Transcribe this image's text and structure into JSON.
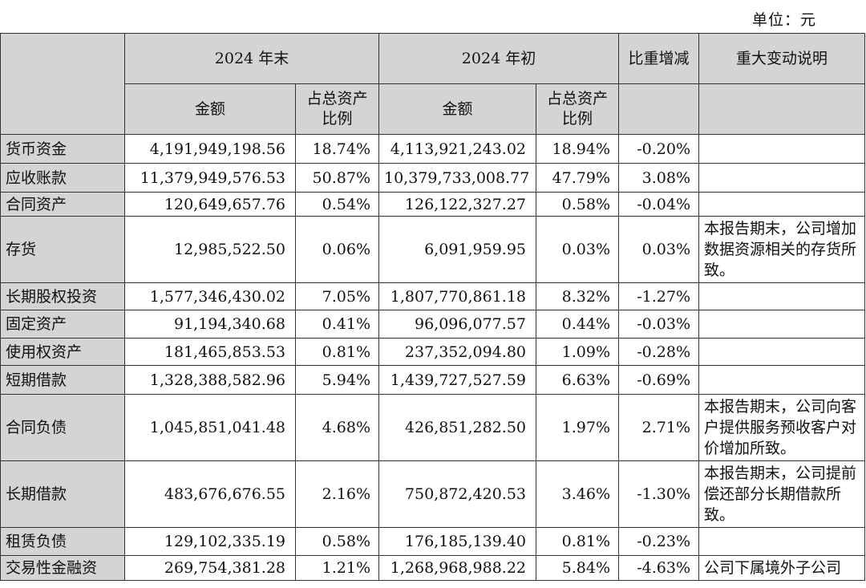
{
  "unit_label": "单位：元",
  "header": {
    "period_end": "2024 年末",
    "period_start": "2024 年初",
    "change": "比重增减",
    "explanation": "重大变动说明",
    "amount": "金额",
    "ratio": "占总资产比例"
  },
  "rows": [
    {
      "name": "货币资金",
      "end_amount": "4,191,949,198.56",
      "end_ratio": "18.74%",
      "start_amount": "4,113,921,243.02",
      "start_ratio": "18.94%",
      "change": "-0.20%",
      "note": ""
    },
    {
      "name": "应收账款",
      "end_amount": "11,379,949,576.53",
      "end_ratio": "50.87%",
      "start_amount": "10,379,733,008.77",
      "start_ratio": "47.79%",
      "change": "3.08%",
      "note": ""
    },
    {
      "name": "合同资产",
      "end_amount": "120,649,657.76",
      "end_ratio": "0.54%",
      "start_amount": "126,122,327.27",
      "start_ratio": "0.58%",
      "change": "-0.04%",
      "note": ""
    },
    {
      "name": "存货",
      "end_amount": "12,985,522.50",
      "end_ratio": "0.06%",
      "start_amount": "6,091,959.95",
      "start_ratio": "0.03%",
      "change": "0.03%",
      "note": "本报告期末，公司增加数据资源相关的存货所致。"
    },
    {
      "name": "长期股权投资",
      "end_amount": "1,577,346,430.02",
      "end_ratio": "7.05%",
      "start_amount": "1,807,770,861.18",
      "start_ratio": "8.32%",
      "change": "-1.27%",
      "note": ""
    },
    {
      "name": "固定资产",
      "end_amount": "91,194,340.68",
      "end_ratio": "0.41%",
      "start_amount": "96,096,077.57",
      "start_ratio": "0.44%",
      "change": "-0.03%",
      "note": ""
    },
    {
      "name": "使用权资产",
      "end_amount": "181,465,853.53",
      "end_ratio": "0.81%",
      "start_amount": "237,352,094.80",
      "start_ratio": "1.09%",
      "change": "-0.28%",
      "note": ""
    },
    {
      "name": "短期借款",
      "end_amount": "1,328,388,582.96",
      "end_ratio": "5.94%",
      "start_amount": "1,439,727,527.59",
      "start_ratio": "6.63%",
      "change": "-0.69%",
      "note": ""
    },
    {
      "name": "合同负债",
      "end_amount": "1,045,851,041.48",
      "end_ratio": "4.68%",
      "start_amount": "426,851,282.50",
      "start_ratio": "1.97%",
      "change": "2.71%",
      "note": "本报告期末，公司向客户提供服务预收客户对价增加所致。"
    },
    {
      "name": "长期借款",
      "end_amount": "483,676,676.55",
      "end_ratio": "2.16%",
      "start_amount": "750,872,420.53",
      "start_ratio": "3.46%",
      "change": "-1.30%",
      "note": "本报告期末，公司提前偿还部分长期借款所致。"
    },
    {
      "name": "租赁负债",
      "end_amount": "129,102,335.19",
      "end_ratio": "0.58%",
      "start_amount": "176,185,139.40",
      "start_ratio": "0.81%",
      "change": "-0.23%",
      "note": ""
    },
    {
      "name": "交易性金融资",
      "end_amount": "269,754,381.28",
      "end_ratio": "1.21%",
      "start_amount": "1,268,968,988.22",
      "start_ratio": "5.84%",
      "change": "-4.63%",
      "note": "公司下属境外子公司"
    }
  ]
}
